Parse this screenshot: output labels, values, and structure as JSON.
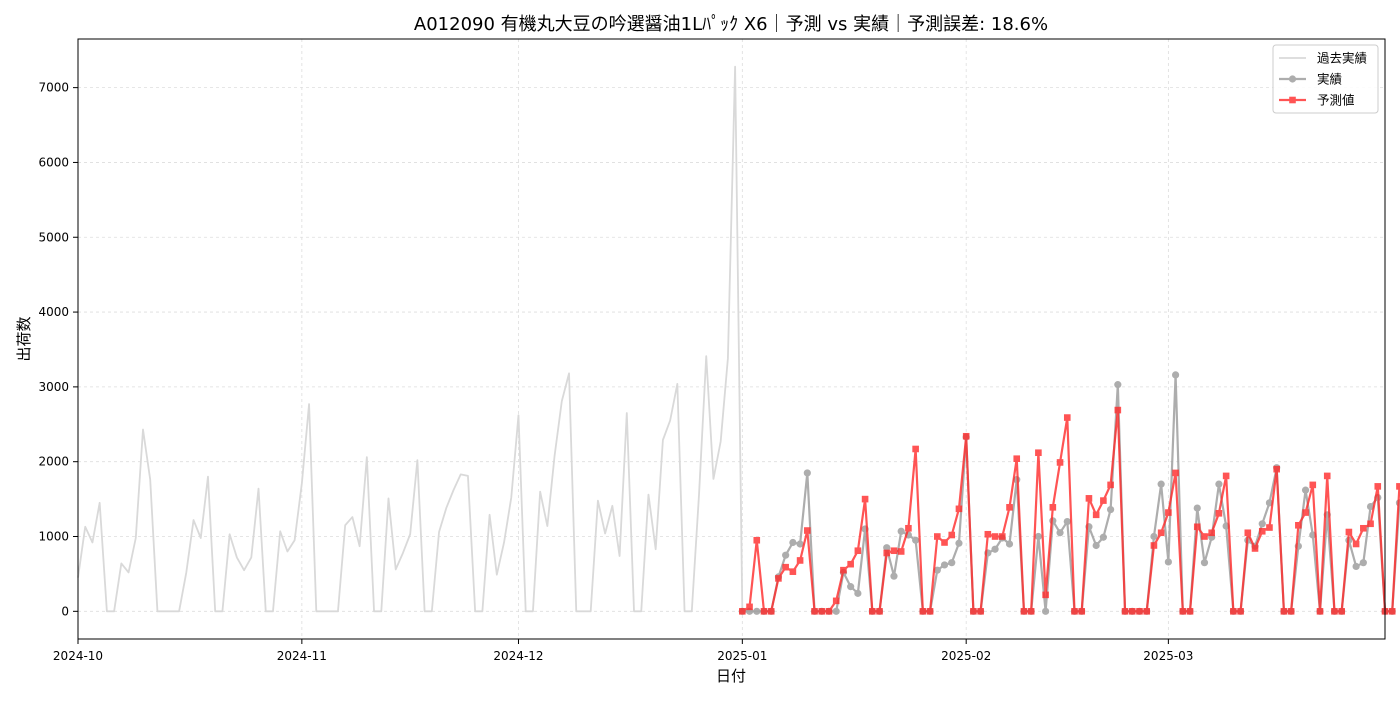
{
  "chart_data": {
    "type": "line",
    "title": "A012090 有機丸大豆の吟選醤油1Lﾊﾟｯｸ X6｜予測 vs 実績｜予測誤差: 18.6%",
    "xlabel": "日付",
    "ylabel": "出荷数",
    "xlim": [
      "2024-10-01",
      "2025-03-31"
    ],
    "ylim": [
      -370,
      7650
    ],
    "x_ticks": [
      "2024-10",
      "2024-11",
      "2024-12",
      "2025-01",
      "2025-02",
      "2025-03"
    ],
    "y_ticks": [
      0,
      1000,
      2000,
      3000,
      4000,
      5000,
      6000,
      7000
    ],
    "grid": true,
    "legend_position": "top-right",
    "colors": {
      "history": "#d9d9d9",
      "actual": "#999999",
      "forecast": "#ff2a2a"
    },
    "series": [
      {
        "name": "過去実績",
        "x_start": "2024-10-01",
        "x_step_days": 1,
        "values": [
          450,
          1130,
          920,
          1450,
          0,
          0,
          640,
          520,
          980,
          2430,
          1760,
          0,
          0,
          0,
          0,
          520,
          1220,
          980,
          1800,
          0,
          0,
          1030,
          720,
          550,
          720,
          1640,
          0,
          0,
          1070,
          800,
          950,
          1710,
          2770,
          0,
          0,
          0,
          0,
          1150,
          1260,
          870,
          2060,
          0,
          0,
          1510,
          560,
          780,
          1030,
          2020,
          0,
          0,
          1060,
          1380,
          1620,
          1830,
          1810,
          0,
          0,
          1290,
          490,
          920,
          1520,
          2620,
          0,
          0,
          1600,
          1140,
          2080,
          2810,
          3180,
          0,
          0,
          0,
          1480,
          1040,
          1410,
          740,
          2650,
          0,
          0,
          1560,
          830,
          2290,
          2550,
          3040,
          0,
          0,
          1560,
          3410,
          1770,
          2270,
          3380,
          7280,
          0,
          0,
          0,
          0,
          0
        ]
      },
      {
        "name": "実績",
        "x_start": "2025-01-01",
        "x_step_days": 1,
        "values": [
          0,
          0,
          0,
          0,
          0,
          460,
          750,
          920,
          900,
          1850,
          0,
          0,
          0,
          0,
          520,
          330,
          240,
          1100,
          0,
          0,
          850,
          470,
          1070,
          1020,
          950,
          0,
          0,
          550,
          620,
          650,
          910,
          2330,
          0,
          0,
          780,
          830,
          980,
          900,
          1760,
          0,
          0,
          1000,
          0,
          1210,
          1050,
          1200,
          0,
          0,
          1130,
          880,
          990,
          1360,
          3030,
          0,
          0,
          0,
          0,
          1000,
          1700,
          660,
          3160,
          0,
          0,
          1380,
          650,
          990,
          1700,
          1140,
          0,
          0,
          950,
          870,
          1170,
          1450,
          1920,
          0,
          0,
          870,
          1620,
          1020,
          0,
          1290,
          0,
          0,
          950,
          600,
          650,
          1400,
          1520,
          0,
          0,
          1450
        ]
      },
      {
        "name": "予測値",
        "x_start": "2025-01-01",
        "x_step_days": 1,
        "values": [
          0,
          60,
          950,
          0,
          0,
          440,
          590,
          530,
          680,
          1080,
          0,
          0,
          0,
          140,
          550,
          630,
          810,
          1500,
          0,
          0,
          780,
          810,
          800,
          1110,
          2170,
          0,
          0,
          1000,
          920,
          1020,
          1370,
          2340,
          0,
          0,
          1030,
          1000,
          1000,
          1390,
          2040,
          0,
          0,
          2120,
          220,
          1390,
          1990,
          2590,
          0,
          0,
          1510,
          1290,
          1480,
          1690,
          2690,
          0,
          0,
          0,
          0,
          880,
          1050,
          1320,
          1850,
          0,
          0,
          1130,
          1000,
          1050,
          1310,
          1810,
          0,
          0,
          1050,
          840,
          1070,
          1120,
          1900,
          0,
          0,
          1150,
          1320,
          1690,
          0,
          1810,
          0,
          0,
          1060,
          900,
          1110,
          1170,
          1670,
          0,
          0,
          1670
        ]
      }
    ]
  }
}
